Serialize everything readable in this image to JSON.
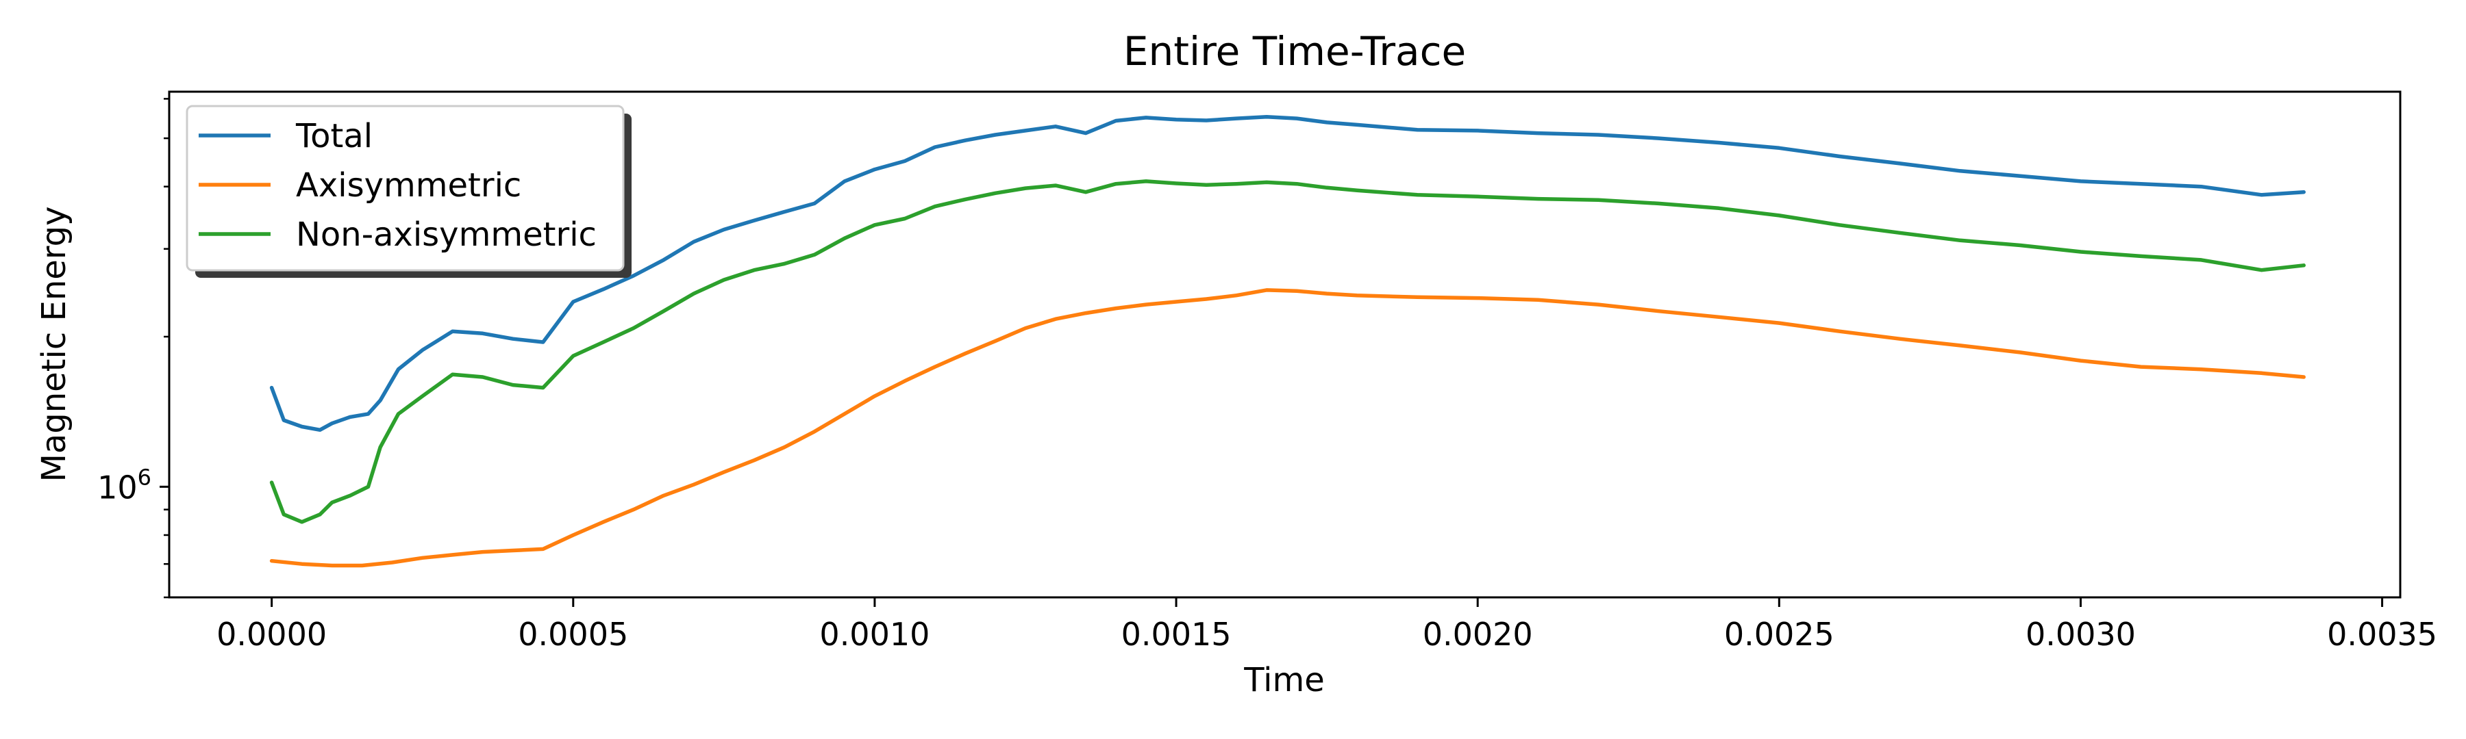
{
  "chart_data": {
    "type": "line",
    "title": "Entire Time-Trace",
    "xlabel": "Time",
    "ylabel": "Magnetic Energy",
    "yscale": "log",
    "xlim": [
      -0.00017,
      0.00353
    ],
    "ylim": [
      600000,
      6200000
    ],
    "grid": false,
    "legend_position": "top-left",
    "x_ticks": [
      {
        "value": 0.0,
        "label": "0.0000"
      },
      {
        "value": 0.0005,
        "label": "0.0005"
      },
      {
        "value": 0.001,
        "label": "0.0010"
      },
      {
        "value": 0.0015,
        "label": "0.0015"
      },
      {
        "value": 0.002,
        "label": "0.0020"
      },
      {
        "value": 0.0025,
        "label": "0.0025"
      },
      {
        "value": 0.003,
        "label": "0.0030"
      },
      {
        "value": 0.0035,
        "label": "0.0035"
      }
    ],
    "y_major_ticks": [
      {
        "value": 1000000,
        "base": "10",
        "exponent": "6"
      }
    ],
    "y_minor_ticks": [
      600000,
      700000,
      800000,
      900000,
      2000000,
      3000000,
      4000000,
      5000000,
      6000000
    ],
    "series": [
      {
        "name": "Total",
        "color": "#1f77b4",
        "points": [
          [
            0.0,
            1580000
          ],
          [
            2e-05,
            1360000
          ],
          [
            5e-05,
            1320000
          ],
          [
            8e-05,
            1300000
          ],
          [
            0.0001,
            1340000
          ],
          [
            0.00013,
            1380000
          ],
          [
            0.00016,
            1400000
          ],
          [
            0.00018,
            1490000
          ],
          [
            0.00021,
            1720000
          ],
          [
            0.00025,
            1880000
          ],
          [
            0.0003,
            2050000
          ],
          [
            0.00035,
            2030000
          ],
          [
            0.0004,
            1980000
          ],
          [
            0.00045,
            1950000
          ],
          [
            0.0005,
            2350000
          ],
          [
            0.00055,
            2490000
          ],
          [
            0.0006,
            2650000
          ],
          [
            0.00065,
            2850000
          ],
          [
            0.0007,
            3100000
          ],
          [
            0.00075,
            3280000
          ],
          [
            0.0008,
            3420000
          ],
          [
            0.00085,
            3560000
          ],
          [
            0.0009,
            3700000
          ],
          [
            0.00095,
            4100000
          ],
          [
            0.001,
            4330000
          ],
          [
            0.00105,
            4500000
          ],
          [
            0.0011,
            4800000
          ],
          [
            0.00115,
            4950000
          ],
          [
            0.0012,
            5080000
          ],
          [
            0.00125,
            5180000
          ],
          [
            0.0013,
            5280000
          ],
          [
            0.00135,
            5120000
          ],
          [
            0.0014,
            5420000
          ],
          [
            0.00145,
            5500000
          ],
          [
            0.0015,
            5450000
          ],
          [
            0.00155,
            5430000
          ],
          [
            0.0016,
            5480000
          ],
          [
            0.00165,
            5520000
          ],
          [
            0.0017,
            5480000
          ],
          [
            0.00175,
            5380000
          ],
          [
            0.0018,
            5320000
          ],
          [
            0.0019,
            5200000
          ],
          [
            0.002,
            5180000
          ],
          [
            0.0021,
            5120000
          ],
          [
            0.0022,
            5080000
          ],
          [
            0.0023,
            5000000
          ],
          [
            0.0024,
            4900000
          ],
          [
            0.0025,
            4780000
          ],
          [
            0.0026,
            4600000
          ],
          [
            0.0027,
            4450000
          ],
          [
            0.0028,
            4300000
          ],
          [
            0.0029,
            4200000
          ],
          [
            0.003,
            4100000
          ],
          [
            0.0031,
            4050000
          ],
          [
            0.0032,
            4000000
          ],
          [
            0.0033,
            3850000
          ],
          [
            0.00337,
            3900000
          ]
        ]
      },
      {
        "name": "Axisymmetric",
        "color": "#ff7f0e",
        "points": [
          [
            0.0,
            710000
          ],
          [
            5e-05,
            700000
          ],
          [
            0.0001,
            695000
          ],
          [
            0.00015,
            695000
          ],
          [
            0.0002,
            705000
          ],
          [
            0.00025,
            720000
          ],
          [
            0.0003,
            730000
          ],
          [
            0.00035,
            740000
          ],
          [
            0.0004,
            745000
          ],
          [
            0.00045,
            750000
          ],
          [
            0.0005,
            800000
          ],
          [
            0.00055,
            850000
          ],
          [
            0.0006,
            900000
          ],
          [
            0.00065,
            960000
          ],
          [
            0.0007,
            1010000
          ],
          [
            0.00075,
            1070000
          ],
          [
            0.0008,
            1130000
          ],
          [
            0.00085,
            1200000
          ],
          [
            0.0009,
            1290000
          ],
          [
            0.00095,
            1400000
          ],
          [
            0.001,
            1520000
          ],
          [
            0.00105,
            1630000
          ],
          [
            0.0011,
            1740000
          ],
          [
            0.00115,
            1850000
          ],
          [
            0.0012,
            1960000
          ],
          [
            0.00125,
            2080000
          ],
          [
            0.0013,
            2170000
          ],
          [
            0.00135,
            2230000
          ],
          [
            0.0014,
            2280000
          ],
          [
            0.00145,
            2320000
          ],
          [
            0.0015,
            2350000
          ],
          [
            0.00155,
            2380000
          ],
          [
            0.0016,
            2420000
          ],
          [
            0.00165,
            2480000
          ],
          [
            0.0017,
            2470000
          ],
          [
            0.00175,
            2440000
          ],
          [
            0.0018,
            2420000
          ],
          [
            0.0019,
            2400000
          ],
          [
            0.002,
            2390000
          ],
          [
            0.0021,
            2370000
          ],
          [
            0.0022,
            2320000
          ],
          [
            0.0023,
            2250000
          ],
          [
            0.0024,
            2190000
          ],
          [
            0.0025,
            2130000
          ],
          [
            0.0026,
            2050000
          ],
          [
            0.0027,
            1980000
          ],
          [
            0.0028,
            1920000
          ],
          [
            0.0029,
            1860000
          ],
          [
            0.003,
            1790000
          ],
          [
            0.0031,
            1740000
          ],
          [
            0.0032,
            1720000
          ],
          [
            0.0033,
            1690000
          ],
          [
            0.00337,
            1660000
          ]
        ]
      },
      {
        "name": "Non-axisymmetric",
        "color": "#2ca02c",
        "points": [
          [
            0.0,
            1020000
          ],
          [
            2e-05,
            880000
          ],
          [
            5e-05,
            850000
          ],
          [
            8e-05,
            880000
          ],
          [
            0.0001,
            930000
          ],
          [
            0.00013,
            960000
          ],
          [
            0.00016,
            1000000
          ],
          [
            0.00018,
            1200000
          ],
          [
            0.00021,
            1400000
          ],
          [
            0.00025,
            1520000
          ],
          [
            0.0003,
            1680000
          ],
          [
            0.00035,
            1660000
          ],
          [
            0.0004,
            1600000
          ],
          [
            0.00045,
            1580000
          ],
          [
            0.0005,
            1830000
          ],
          [
            0.00055,
            1950000
          ],
          [
            0.0006,
            2080000
          ],
          [
            0.00065,
            2250000
          ],
          [
            0.0007,
            2440000
          ],
          [
            0.00075,
            2600000
          ],
          [
            0.0008,
            2720000
          ],
          [
            0.00085,
            2800000
          ],
          [
            0.0009,
            2920000
          ],
          [
            0.00095,
            3150000
          ],
          [
            0.001,
            3350000
          ],
          [
            0.00105,
            3450000
          ],
          [
            0.0011,
            3650000
          ],
          [
            0.00115,
            3770000
          ],
          [
            0.0012,
            3880000
          ],
          [
            0.00125,
            3970000
          ],
          [
            0.0013,
            4020000
          ],
          [
            0.00135,
            3900000
          ],
          [
            0.0014,
            4050000
          ],
          [
            0.00145,
            4100000
          ],
          [
            0.0015,
            4060000
          ],
          [
            0.00155,
            4030000
          ],
          [
            0.0016,
            4050000
          ],
          [
            0.00165,
            4080000
          ],
          [
            0.0017,
            4050000
          ],
          [
            0.00175,
            3980000
          ],
          [
            0.0018,
            3930000
          ],
          [
            0.0019,
            3850000
          ],
          [
            0.002,
            3820000
          ],
          [
            0.0021,
            3780000
          ],
          [
            0.0022,
            3760000
          ],
          [
            0.0023,
            3700000
          ],
          [
            0.0024,
            3620000
          ],
          [
            0.0025,
            3500000
          ],
          [
            0.0026,
            3350000
          ],
          [
            0.0027,
            3230000
          ],
          [
            0.0028,
            3120000
          ],
          [
            0.0029,
            3050000
          ],
          [
            0.003,
            2960000
          ],
          [
            0.0031,
            2900000
          ],
          [
            0.0032,
            2850000
          ],
          [
            0.0033,
            2720000
          ],
          [
            0.00337,
            2780000
          ]
        ]
      }
    ]
  }
}
